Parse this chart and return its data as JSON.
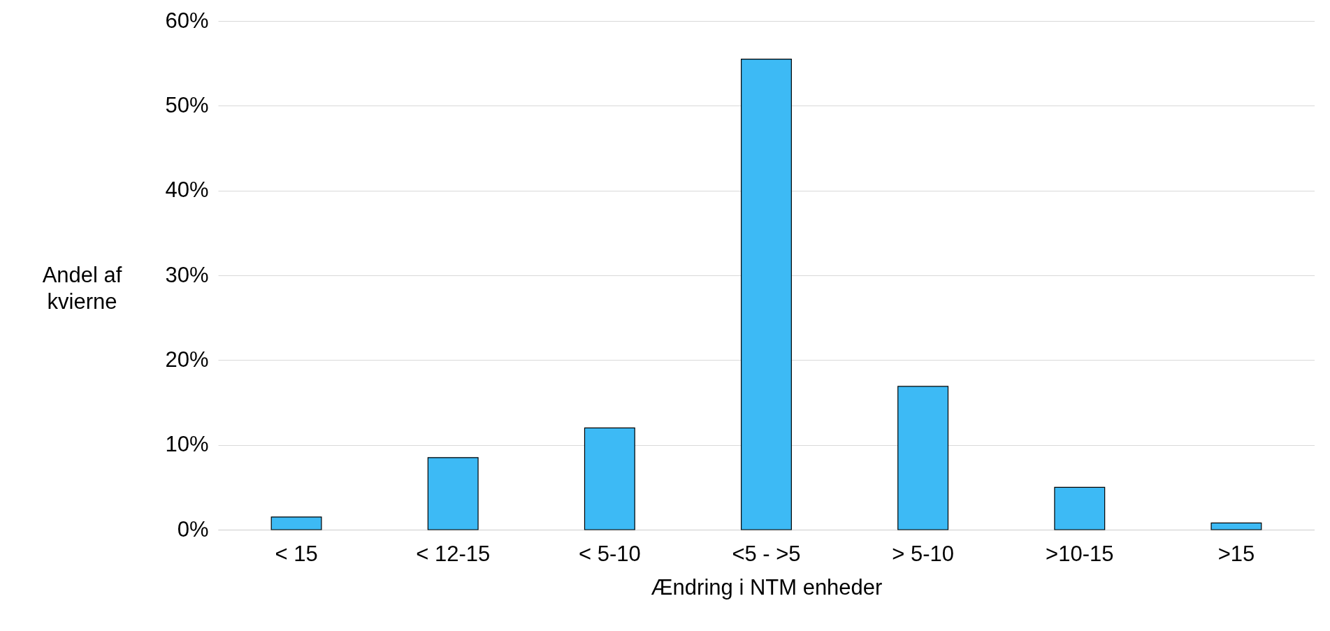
{
  "chart_data": {
    "type": "bar",
    "xlabel": "Ændring i NTM enheder",
    "ylabel": "Andel af\nkvierne",
    "categories": [
      "< 15",
      "< 12-15",
      "< 5-10",
      "<5 - >5",
      "> 5-10",
      ">10-15",
      ">15"
    ],
    "values": [
      1.5,
      8.5,
      12,
      55.5,
      16.9,
      5,
      0.8
    ],
    "color": "#3dbaf5",
    "ylim": [
      0,
      60
    ],
    "yticks": [
      {
        "value": 0,
        "label": "0%"
      },
      {
        "value": 10,
        "label": "10%"
      },
      {
        "value": 20,
        "label": "20%"
      },
      {
        "value": 30,
        "label": "30%"
      },
      {
        "value": 40,
        "label": "40%"
      },
      {
        "value": 50,
        "label": "50%"
      },
      {
        "value": 60,
        "label": "60%"
      }
    ],
    "grid": "y"
  }
}
